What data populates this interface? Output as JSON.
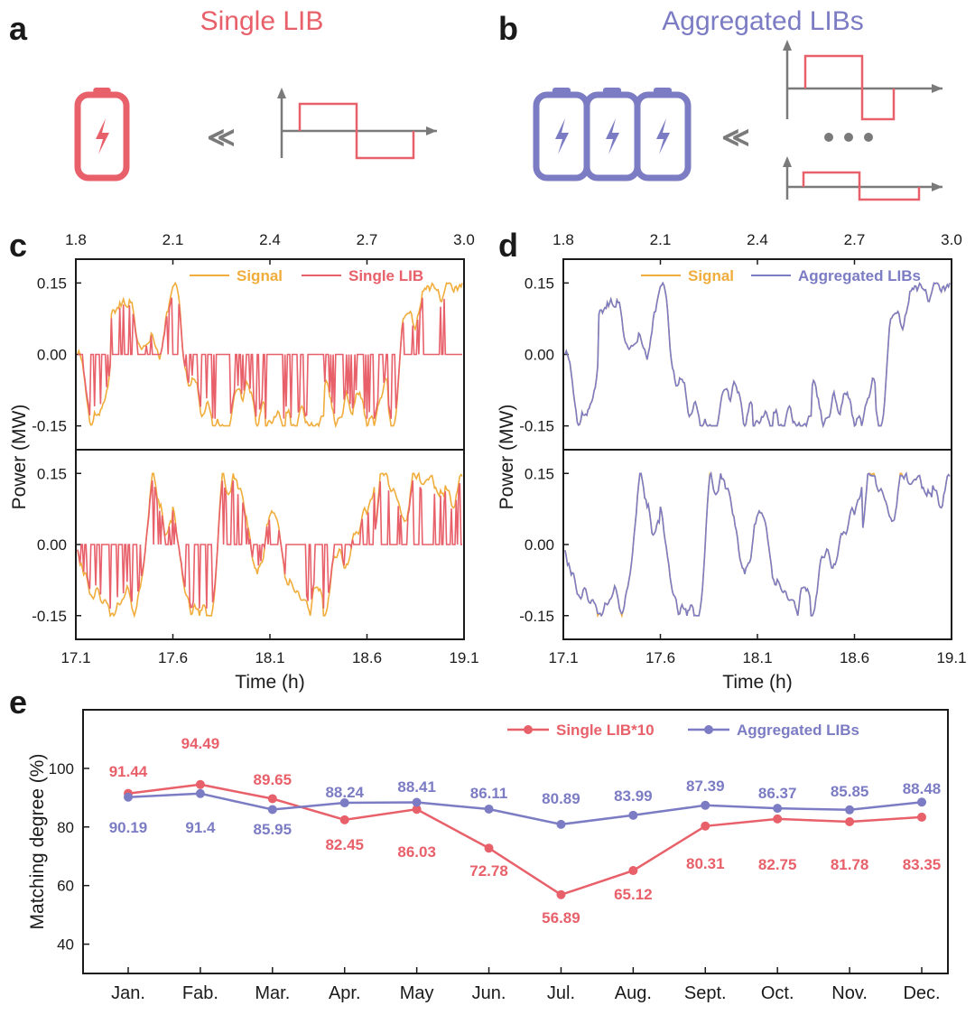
{
  "colors": {
    "red": "#e8606a",
    "blue": "#7c7cc4",
    "orange": "#f0ad3c",
    "gray": "#7a7a7a",
    "axis": "#1a1a1a"
  },
  "panel_a": {
    "label": "a",
    "title": "Single LIB",
    "arrow_glyph": "≪"
  },
  "panel_b": {
    "label": "b",
    "title": "Aggregated LIBs",
    "arrow_glyph": "≪"
  },
  "chart_data": [
    {
      "panel": "c",
      "type": "line",
      "top_x_ticks": [
        "1.8",
        "2.1",
        "2.4",
        "2.7",
        "3.0"
      ],
      "bottom_x_ticks": [
        "17.1",
        "17.6",
        "18.1",
        "18.6",
        "19.1"
      ],
      "xlim_top": [
        1.8,
        3.0
      ],
      "xlim_bottom": [
        17.1,
        19.1
      ],
      "y_ticks": [
        "0.15",
        "0.00",
        "-0.15"
      ],
      "ylim": [
        -0.2,
        0.2
      ],
      "ylabel": "Power (MW)",
      "xlabel": "Time (h)",
      "legend": [
        "Signal",
        "Single LIB"
      ],
      "series": [
        {
          "name": "Signal",
          "color": "orange"
        },
        {
          "name": "Single LIB",
          "color": "red"
        }
      ]
    },
    {
      "panel": "d",
      "type": "line",
      "top_x_ticks": [
        "1.8",
        "2.1",
        "2.4",
        "2.7",
        "3.0"
      ],
      "bottom_x_ticks": [
        "17.1",
        "17.6",
        "18.1",
        "18.6",
        "19.1"
      ],
      "xlim_top": [
        1.8,
        3.0
      ],
      "xlim_bottom": [
        17.1,
        19.1
      ],
      "y_ticks": [
        "0.15",
        "0.00",
        "-0.15"
      ],
      "ylim": [
        -0.2,
        0.2
      ],
      "ylabel": "Power (MW)",
      "xlabel": "Time (h)",
      "legend": [
        "Signal",
        "Aggregated LIBs"
      ],
      "series": [
        {
          "name": "Signal",
          "color": "orange"
        },
        {
          "name": "Aggregated LIBs",
          "color": "blue"
        }
      ]
    },
    {
      "panel": "e",
      "type": "line",
      "categories": [
        "Jan.",
        "Fab.",
        "Mar.",
        "Apr.",
        "May",
        "Jun.",
        "Jul.",
        "Aug.",
        "Sept.",
        "Oct.",
        "Nov.",
        "Dec."
      ],
      "ylabel": "Matching degree (%)",
      "y_ticks": [
        40,
        60,
        80,
        100
      ],
      "ylim": [
        30,
        120
      ],
      "legend": [
        "Single LIB*10",
        "Aggregated LIBs"
      ],
      "series": [
        {
          "name": "Single LIB*10",
          "color": "red",
          "values": [
            91.44,
            94.49,
            89.65,
            82.45,
            86.03,
            72.78,
            56.89,
            65.12,
            80.31,
            82.75,
            81.78,
            83.35
          ],
          "labels": [
            "91.44",
            "94.49",
            "89.65",
            "82.45",
            "86.03",
            "72.78",
            "56.89",
            "65.12",
            "80.31",
            "82.75",
            "81.78",
            "83.35"
          ]
        },
        {
          "name": "Aggregated LIBs",
          "color": "blue",
          "values": [
            90.19,
            91.4,
            85.95,
            88.24,
            88.41,
            86.11,
            80.89,
            83.99,
            87.39,
            86.37,
            85.85,
            88.48
          ],
          "labels": [
            "90.19",
            "91.4",
            "85.95",
            "88.24",
            "88.41",
            "86.11",
            "80.89",
            "83.99",
            "87.39",
            "86.37",
            "85.85",
            "88.48"
          ]
        }
      ]
    }
  ]
}
